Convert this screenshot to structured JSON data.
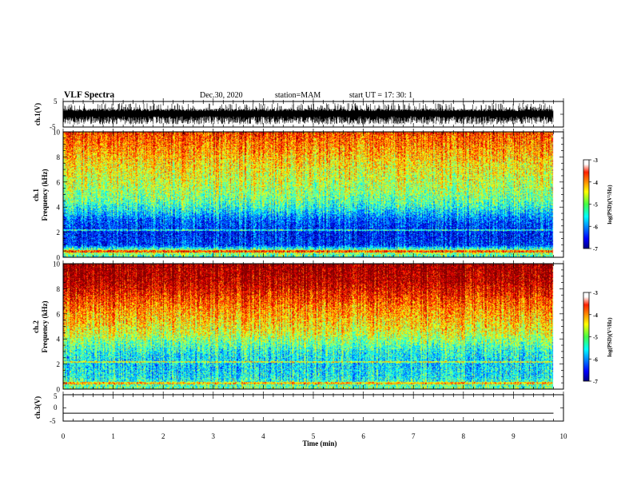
{
  "header": {
    "title": "VLF Spectra",
    "date": "Dec.30, 2020",
    "station": "station=MAM",
    "start": "start  UT  =   17: 30: 1"
  },
  "chart_data": [
    {
      "type": "line",
      "name": "ch1-waveform",
      "ylabel": "ch.1(V)",
      "ylim": [
        -5,
        5
      ],
      "yticks": [
        "5",
        "-5"
      ],
      "xlim": [
        0,
        10
      ],
      "description_of_signal": "dense noise bursts spanning roughly -4 to 4 V"
    },
    {
      "type": "heatmap",
      "name": "ch1-spectrogram",
      "ylabel": "ch.1\nFrequency  (kHz)",
      "ylabel_line1": "ch.1",
      "ylabel_line2": "Frequency  (kHz)",
      "ylim": [
        0,
        10
      ],
      "xlim": [
        0,
        9.8
      ],
      "yticks": [
        "0",
        "2",
        "4",
        "6",
        "8",
        "10"
      ],
      "zlim": [
        -7,
        -3
      ],
      "profile": [
        [
          0,
          -5.4
        ],
        [
          0.5,
          -4.6
        ],
        [
          1,
          -6.3
        ],
        [
          2,
          -6.4
        ],
        [
          3,
          -6.1
        ],
        [
          3.8,
          -5.5
        ],
        [
          4.5,
          -5.1
        ],
        [
          5.5,
          -4.8
        ],
        [
          6.5,
          -4.6
        ],
        [
          7.5,
          -4.4
        ],
        [
          8.5,
          -4.1
        ],
        [
          10,
          -3.7
        ]
      ],
      "colorbar": {
        "label": "log(PSD)(V²/Hz)",
        "ticks": [
          "-3",
          "-4",
          "-5",
          "-6",
          "-7"
        ]
      }
    },
    {
      "type": "heatmap",
      "name": "ch2-spectrogram",
      "ylabel_line1": "ch.2",
      "ylabel_line2": "Frequency  (kHz)",
      "ylim": [
        0,
        10
      ],
      "xlim": [
        0,
        9.8
      ],
      "yticks": [
        "0",
        "2",
        "4",
        "6",
        "8",
        "10"
      ],
      "zlim": [
        -7,
        -3
      ],
      "profile": [
        [
          0,
          -5.0
        ],
        [
          0.5,
          -5.2
        ],
        [
          1,
          -5.5
        ],
        [
          2,
          -5.6
        ],
        [
          3,
          -5.4
        ],
        [
          3.8,
          -5.0
        ],
        [
          4.5,
          -4.6
        ],
        [
          5.5,
          -4.3
        ],
        [
          6.5,
          -4.0
        ],
        [
          7.5,
          -3.6
        ],
        [
          8.5,
          -3.2
        ],
        [
          10,
          -3.0
        ]
      ],
      "colorbar": {
        "label": "log(PSD)(V²/Hz)",
        "ticks": [
          "-3",
          "-4",
          "-5",
          "-6",
          "-7"
        ]
      }
    },
    {
      "type": "line",
      "name": "ch3-waveform",
      "ylabel": "ch.3(V)",
      "ylim": [
        -5,
        5
      ],
      "yticks": [
        "5",
        "0",
        "-5"
      ],
      "x": [
        0,
        9.8
      ],
      "y": [
        -2,
        -2
      ]
    }
  ],
  "xaxis": {
    "label": "Time  (min)",
    "ticks": [
      "0",
      "1",
      "2",
      "3",
      "4",
      "5",
      "6",
      "7",
      "8",
      "9",
      "10"
    ],
    "xlim": [
      0,
      10
    ]
  },
  "colors": {
    "jet": [
      "#00007f",
      "#0000ff",
      "#007fff",
      "#00ffff",
      "#7fff7f",
      "#ffff00",
      "#ff7f00",
      "#ff0000",
      "#7f0000"
    ]
  }
}
